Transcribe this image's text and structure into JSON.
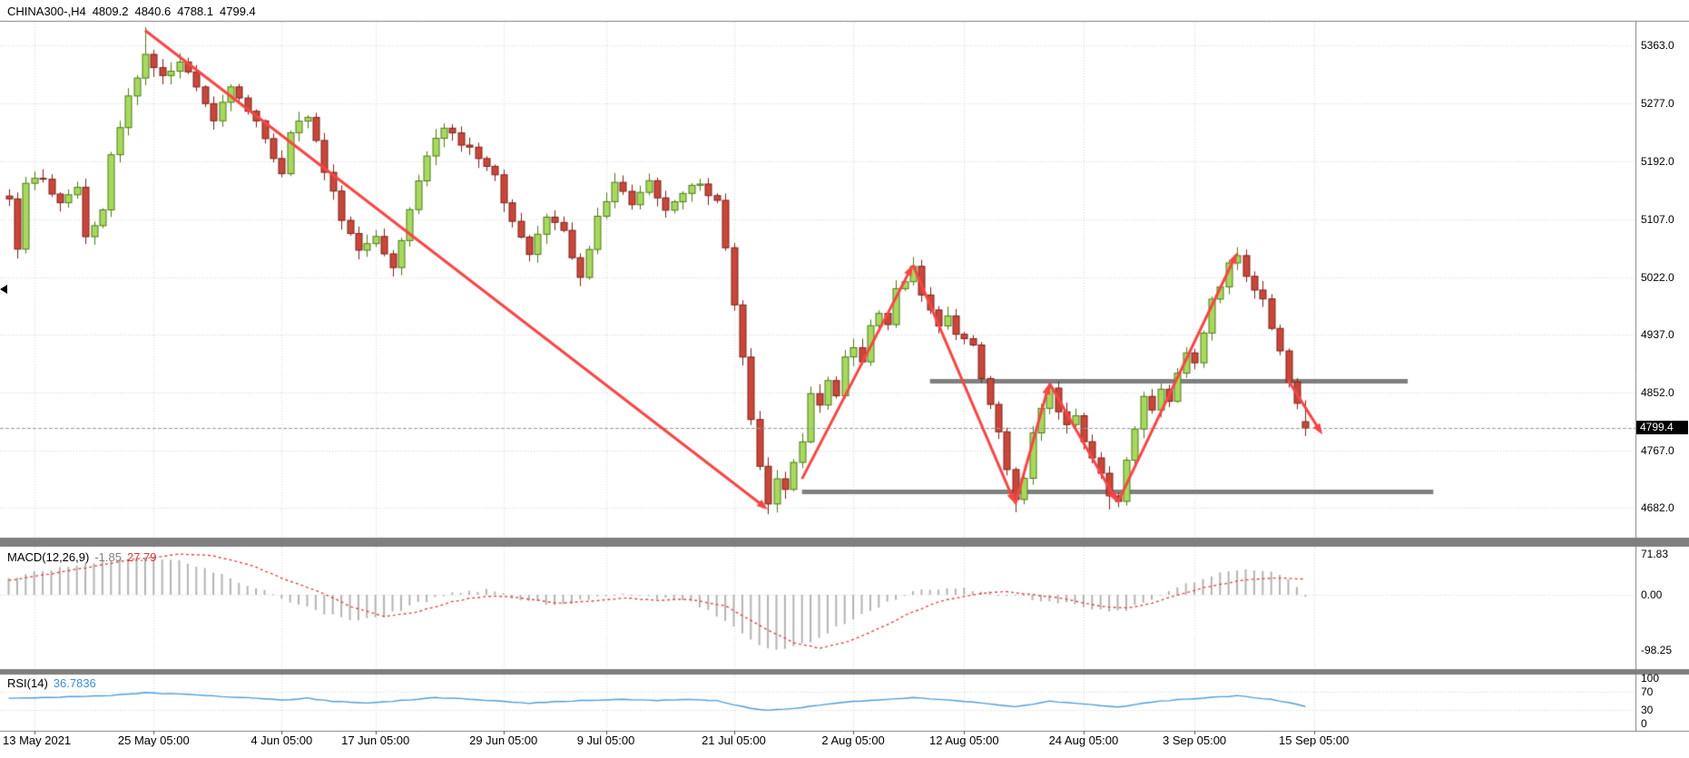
{
  "header": {
    "symbol_tf": "CHINA300-,H4",
    "open": "4809.2",
    "high": "4840.6",
    "low": "4788.1",
    "close": "4799.4"
  },
  "price_axis": {
    "labels": [
      "5363.0",
      "5277.0",
      "5192.0",
      "5107.0",
      "5022.0",
      "4937.0",
      "4852.0",
      "4767.0",
      "4682.0"
    ],
    "current_price": "4799.4",
    "current_price_value": 4799.4
  },
  "time_axis": {
    "labels": [
      "13 May 2021",
      "25 May 05:00",
      "4 Jun 05:00",
      "17 Jun 05:00",
      "29 Jun 05:00",
      "9 Jul 05:00",
      "21 Jul 05:00",
      "2 Aug 05:00",
      "12 Aug 05:00",
      "24 Aug 05:00",
      "3 Sep 05:00",
      "15 Sep 05:00"
    ],
    "bar_indices": [
      3,
      17,
      32,
      43,
      58,
      70,
      85,
      99,
      112,
      126,
      139,
      153
    ]
  },
  "indicators": {
    "macd": {
      "name": "MACD(12,26,9)",
      "main_value": "-1.85",
      "signal_value": "27.79",
      "scale_labels": [
        "71.83",
        "0.00",
        "-98.25"
      ],
      "scale_values": [
        71.83,
        0,
        -98.25
      ]
    },
    "rsi": {
      "name": "RSI(14)",
      "value": "36.7836",
      "scale_labels": [
        "100",
        "70",
        "30",
        "0"
      ],
      "scale_values": [
        100,
        70,
        30,
        0
      ],
      "levels": [
        70,
        30
      ]
    }
  },
  "colors": {
    "up": "#a8d85e",
    "up_border": "#4c7c16",
    "down": "#c9473a",
    "down_border": "#7e221a",
    "arrow": "#f84545",
    "sr_line": "#7f7f7f",
    "separator": "#7f7f7f",
    "grid": "#d6d6d6",
    "macd_hist": "#b4b4b4",
    "macd_signal": "#e04a4a",
    "rsi_line": "#4d9edb",
    "badge_bg": "#000000",
    "badge_text": "#ffffff",
    "current_price_line": "#9a9a9a"
  },
  "chart_data": {
    "type": "candlestick",
    "title": "CHINA300-,H4",
    "timeframe": "H4",
    "symbol": "CHINA300-",
    "ylim": [
      4640,
      5395
    ],
    "bar_count": 153,
    "x_tick_labels": [
      "13 May 2021",
      "25 May 05:00",
      "4 Jun 05:00",
      "17 Jun 05:00",
      "29 Jun 05:00",
      "9 Jul 05:00",
      "21 Jul 05:00",
      "2 Aug 05:00",
      "12 Aug 05:00",
      "24 Aug 05:00",
      "3 Sep 05:00",
      "15 Sep 05:00"
    ],
    "y_tick_labels": [
      "5363.0",
      "5277.0",
      "5192.0",
      "5107.0",
      "5022.0",
      "4937.0",
      "4852.0",
      "4767.0",
      "4682.0"
    ],
    "last_bar": {
      "open": 4809.2,
      "high": 4840.6,
      "low": 4788.1,
      "close": 4799.4
    },
    "price_path": [
      [
        0,
        5140
      ],
      [
        1,
        5060
      ],
      [
        2,
        5160
      ],
      [
        4,
        5165
      ],
      [
        6,
        5130
      ],
      [
        8,
        5150
      ],
      [
        9,
        5085
      ],
      [
        11,
        5120
      ],
      [
        12,
        5200
      ],
      [
        14,
        5290
      ],
      [
        16,
        5345
      ],
      [
        18,
        5315
      ],
      [
        20,
        5340
      ],
      [
        22,
        5300
      ],
      [
        24,
        5250
      ],
      [
        26,
        5300
      ],
      [
        28,
        5270
      ],
      [
        30,
        5230
      ],
      [
        32,
        5170
      ],
      [
        33,
        5235
      ],
      [
        35,
        5260
      ],
      [
        37,
        5180
      ],
      [
        39,
        5110
      ],
      [
        41,
        5060
      ],
      [
        43,
        5080
      ],
      [
        45,
        5040
      ],
      [
        47,
        5120
      ],
      [
        49,
        5200
      ],
      [
        51,
        5245
      ],
      [
        53,
        5220
      ],
      [
        55,
        5200
      ],
      [
        57,
        5170
      ],
      [
        59,
        5100
      ],
      [
        61,
        5055
      ],
      [
        63,
        5110
      ],
      [
        65,
        5090
      ],
      [
        67,
        5020
      ],
      [
        69,
        5110
      ],
      [
        71,
        5160
      ],
      [
        73,
        5130
      ],
      [
        75,
        5160
      ],
      [
        77,
        5120
      ],
      [
        79,
        5150
      ],
      [
        81,
        5160
      ],
      [
        83,
        5130
      ],
      [
        84,
        5070
      ],
      [
        85,
        4980
      ],
      [
        86,
        4900
      ],
      [
        87,
        4810
      ],
      [
        88,
        4740
      ],
      [
        89,
        4690
      ],
      [
        90,
        4730
      ],
      [
        91,
        4710
      ],
      [
        92,
        4750
      ],
      [
        93,
        4780
      ],
      [
        94,
        4850
      ],
      [
        95,
        4830
      ],
      [
        96,
        4870
      ],
      [
        97,
        4850
      ],
      [
        98,
        4900
      ],
      [
        99,
        4920
      ],
      [
        100,
        4900
      ],
      [
        101,
        4950
      ],
      [
        102,
        4970
      ],
      [
        103,
        4950
      ],
      [
        104,
        5000
      ],
      [
        105,
        5020
      ],
      [
        106,
        5035
      ],
      [
        107,
        5000
      ],
      [
        108,
        4970
      ],
      [
        109,
        4950
      ],
      [
        110,
        4960
      ],
      [
        111,
        4940
      ],
      [
        112,
        4930
      ],
      [
        113,
        4920
      ],
      [
        114,
        4870
      ],
      [
        115,
        4830
      ],
      [
        116,
        4790
      ],
      [
        117,
        4740
      ],
      [
        118,
        4695
      ],
      [
        119,
        4730
      ],
      [
        120,
        4790
      ],
      [
        121,
        4830
      ],
      [
        122,
        4860
      ],
      [
        123,
        4820
      ],
      [
        124,
        4800
      ],
      [
        125,
        4820
      ],
      [
        126,
        4780
      ],
      [
        127,
        4760
      ],
      [
        128,
        4730
      ],
      [
        129,
        4700
      ],
      [
        130,
        4695
      ],
      [
        131,
        4750
      ],
      [
        132,
        4800
      ],
      [
        133,
        4850
      ],
      [
        134,
        4830
      ],
      [
        135,
        4860
      ],
      [
        136,
        4840
      ],
      [
        137,
        4880
      ],
      [
        138,
        4910
      ],
      [
        139,
        4900
      ],
      [
        140,
        4940
      ],
      [
        141,
        4990
      ],
      [
        142,
        5010
      ],
      [
        143,
        5040
      ],
      [
        144,
        5055
      ],
      [
        145,
        5020
      ],
      [
        146,
        5000
      ],
      [
        147,
        4990
      ],
      [
        148,
        4950
      ],
      [
        149,
        4910
      ],
      [
        150,
        4870
      ],
      [
        151,
        4840
      ],
      [
        152,
        4800
      ]
    ],
    "extremes": [
      {
        "index": 16,
        "high": 5390
      },
      {
        "index": 89,
        "low": 4673
      },
      {
        "index": 106,
        "high": 5046
      },
      {
        "index": 118,
        "low": 4676
      },
      {
        "index": 129,
        "low": 4680
      },
      {
        "index": 144,
        "high": 5066
      }
    ],
    "support_resistance": [
      {
        "price": 4870,
        "from_bar": 108,
        "to_bar": 164
      },
      {
        "price": 4706,
        "from_bar": 93,
        "to_bar": 167
      }
    ],
    "trend_arrows": [
      {
        "from": [
          16,
          5385
        ],
        "to": [
          89,
          4680
        ]
      },
      {
        "from": [
          93,
          4725
        ],
        "to": [
          106,
          5040
        ]
      },
      {
        "from": [
          106,
          5040
        ],
        "to": [
          118,
          4688
        ]
      },
      {
        "from": [
          118,
          4688
        ],
        "to": [
          122,
          4866
        ]
      },
      {
        "from": [
          122,
          4866
        ],
        "to": [
          130,
          4690
        ]
      },
      {
        "from": [
          130,
          4690
        ],
        "to": [
          144,
          5058
        ]
      },
      {
        "from": [
          150,
          4870
        ],
        "to": [
          154,
          4790
        ]
      }
    ],
    "macd_signal_path": [
      [
        0,
        25
      ],
      [
        8,
        45
      ],
      [
        14,
        62
      ],
      [
        20,
        72
      ],
      [
        24,
        70
      ],
      [
        28,
        55
      ],
      [
        32,
        30
      ],
      [
        36,
        8
      ],
      [
        40,
        -20
      ],
      [
        44,
        -38
      ],
      [
        48,
        -30
      ],
      [
        52,
        -12
      ],
      [
        56,
        -2
      ],
      [
        60,
        -5
      ],
      [
        64,
        -15
      ],
      [
        68,
        -12
      ],
      [
        72,
        -6
      ],
      [
        76,
        -10
      ],
      [
        80,
        -8
      ],
      [
        84,
        -20
      ],
      [
        88,
        -55
      ],
      [
        92,
        -85
      ],
      [
        95,
        -95
      ],
      [
        98,
        -85
      ],
      [
        102,
        -60
      ],
      [
        106,
        -30
      ],
      [
        110,
        -8
      ],
      [
        114,
        2
      ],
      [
        117,
        5
      ],
      [
        120,
        0
      ],
      [
        124,
        -8
      ],
      [
        128,
        -20
      ],
      [
        131,
        -24
      ],
      [
        134,
        -15
      ],
      [
        137,
        0
      ],
      [
        140,
        12
      ],
      [
        144,
        24
      ],
      [
        148,
        30
      ],
      [
        152,
        28
      ]
    ],
    "macd_hist_path": [
      [
        0,
        30
      ],
      [
        6,
        48
      ],
      [
        12,
        60
      ],
      [
        16,
        68
      ],
      [
        20,
        60
      ],
      [
        24,
        42
      ],
      [
        28,
        18
      ],
      [
        32,
        -5
      ],
      [
        36,
        -30
      ],
      [
        40,
        -45
      ],
      [
        44,
        -38
      ],
      [
        48,
        -15
      ],
      [
        52,
        5
      ],
      [
        56,
        8
      ],
      [
        60,
        -8
      ],
      [
        64,
        -20
      ],
      [
        68,
        -8
      ],
      [
        72,
        2
      ],
      [
        76,
        -6
      ],
      [
        80,
        -12
      ],
      [
        84,
        -45
      ],
      [
        88,
        -90
      ],
      [
        91,
        -98
      ],
      [
        94,
        -85
      ],
      [
        98,
        -50
      ],
      [
        102,
        -20
      ],
      [
        106,
        5
      ],
      [
        110,
        12
      ],
      [
        114,
        8
      ],
      [
        117,
        0
      ],
      [
        120,
        -8
      ],
      [
        124,
        -15
      ],
      [
        128,
        -28
      ],
      [
        131,
        -26
      ],
      [
        134,
        -8
      ],
      [
        137,
        12
      ],
      [
        140,
        30
      ],
      [
        143,
        42
      ],
      [
        146,
        45
      ],
      [
        149,
        35
      ],
      [
        151,
        15
      ],
      [
        152,
        -2
      ]
    ],
    "rsi_path": [
      [
        0,
        55
      ],
      [
        6,
        58
      ],
      [
        12,
        62
      ],
      [
        16,
        68
      ],
      [
        20,
        65
      ],
      [
        24,
        61
      ],
      [
        28,
        57
      ],
      [
        32,
        52
      ],
      [
        35,
        56
      ],
      [
        38,
        49
      ],
      [
        42,
        45
      ],
      [
        46,
        51
      ],
      [
        50,
        57
      ],
      [
        54,
        54
      ],
      [
        58,
        49
      ],
      [
        61,
        45
      ],
      [
        64,
        48
      ],
      [
        68,
        51
      ],
      [
        72,
        53
      ],
      [
        76,
        51
      ],
      [
        80,
        53
      ],
      [
        83,
        50
      ],
      [
        85,
        42
      ],
      [
        87,
        34
      ],
      [
        89,
        29
      ],
      [
        92,
        33
      ],
      [
        95,
        41
      ],
      [
        98,
        47
      ],
      [
        101,
        51
      ],
      [
        104,
        55
      ],
      [
        106,
        57
      ],
      [
        109,
        53
      ],
      [
        112,
        49
      ],
      [
        115,
        44
      ],
      [
        118,
        37
      ],
      [
        120,
        43
      ],
      [
        122,
        49
      ],
      [
        125,
        45
      ],
      [
        128,
        39
      ],
      [
        130,
        36
      ],
      [
        133,
        45
      ],
      [
        136,
        51
      ],
      [
        139,
        55
      ],
      [
        142,
        59
      ],
      [
        144,
        61
      ],
      [
        146,
        57
      ],
      [
        148,
        53
      ],
      [
        150,
        47
      ],
      [
        152,
        36.8
      ]
    ]
  }
}
